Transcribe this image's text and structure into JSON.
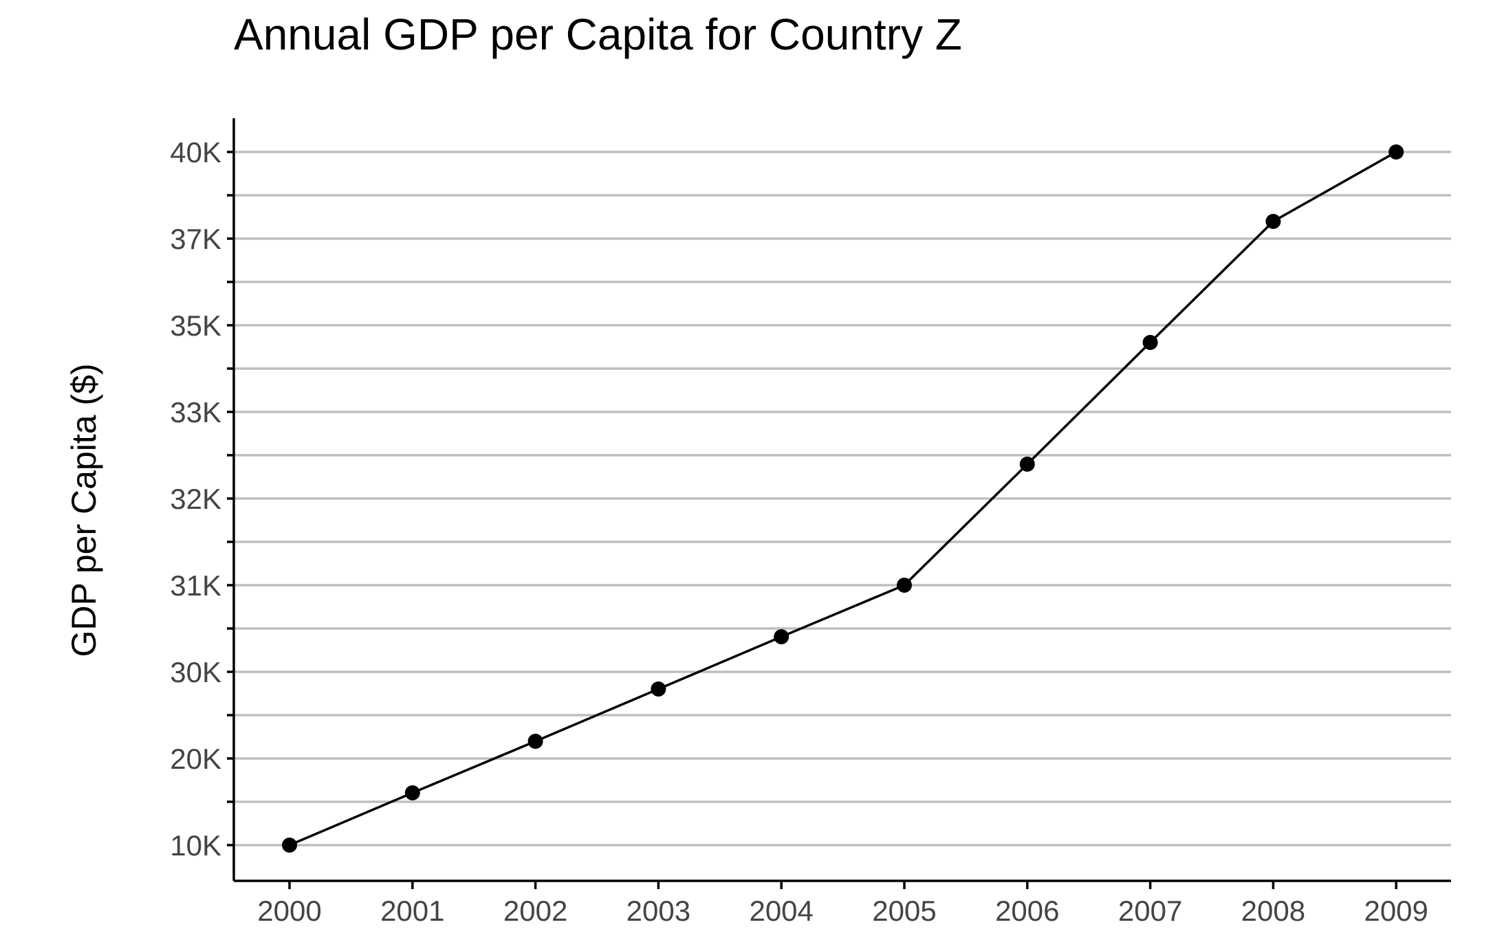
{
  "chart_data": {
    "type": "line",
    "title": "Annual GDP per Capita for Country Z",
    "xlabel": "",
    "ylabel": "GDP per Capita ($)",
    "x": [
      "2000",
      "2001",
      "2002",
      "2003",
      "2004",
      "2005",
      "2006",
      "2007",
      "2008",
      "2009"
    ],
    "y_ticks": [
      "10K",
      "20K",
      "30K",
      "31K",
      "32K",
      "33K",
      "35K",
      "37K",
      "40K"
    ],
    "y": [
      "10K",
      "15K",
      "20K",
      "25K",
      "30K",
      "31K",
      "32.5K",
      "34K",
      "37.5K",
      "40K"
    ],
    "y_position_index": [
      0,
      1,
      2,
      3,
      4,
      5,
      7,
      9,
      11,
      12
    ],
    "grid": true,
    "legend": "none",
    "colors": {
      "line": "#000000",
      "grid": "#bfbfbf",
      "tick_text": "#444444"
    }
  }
}
